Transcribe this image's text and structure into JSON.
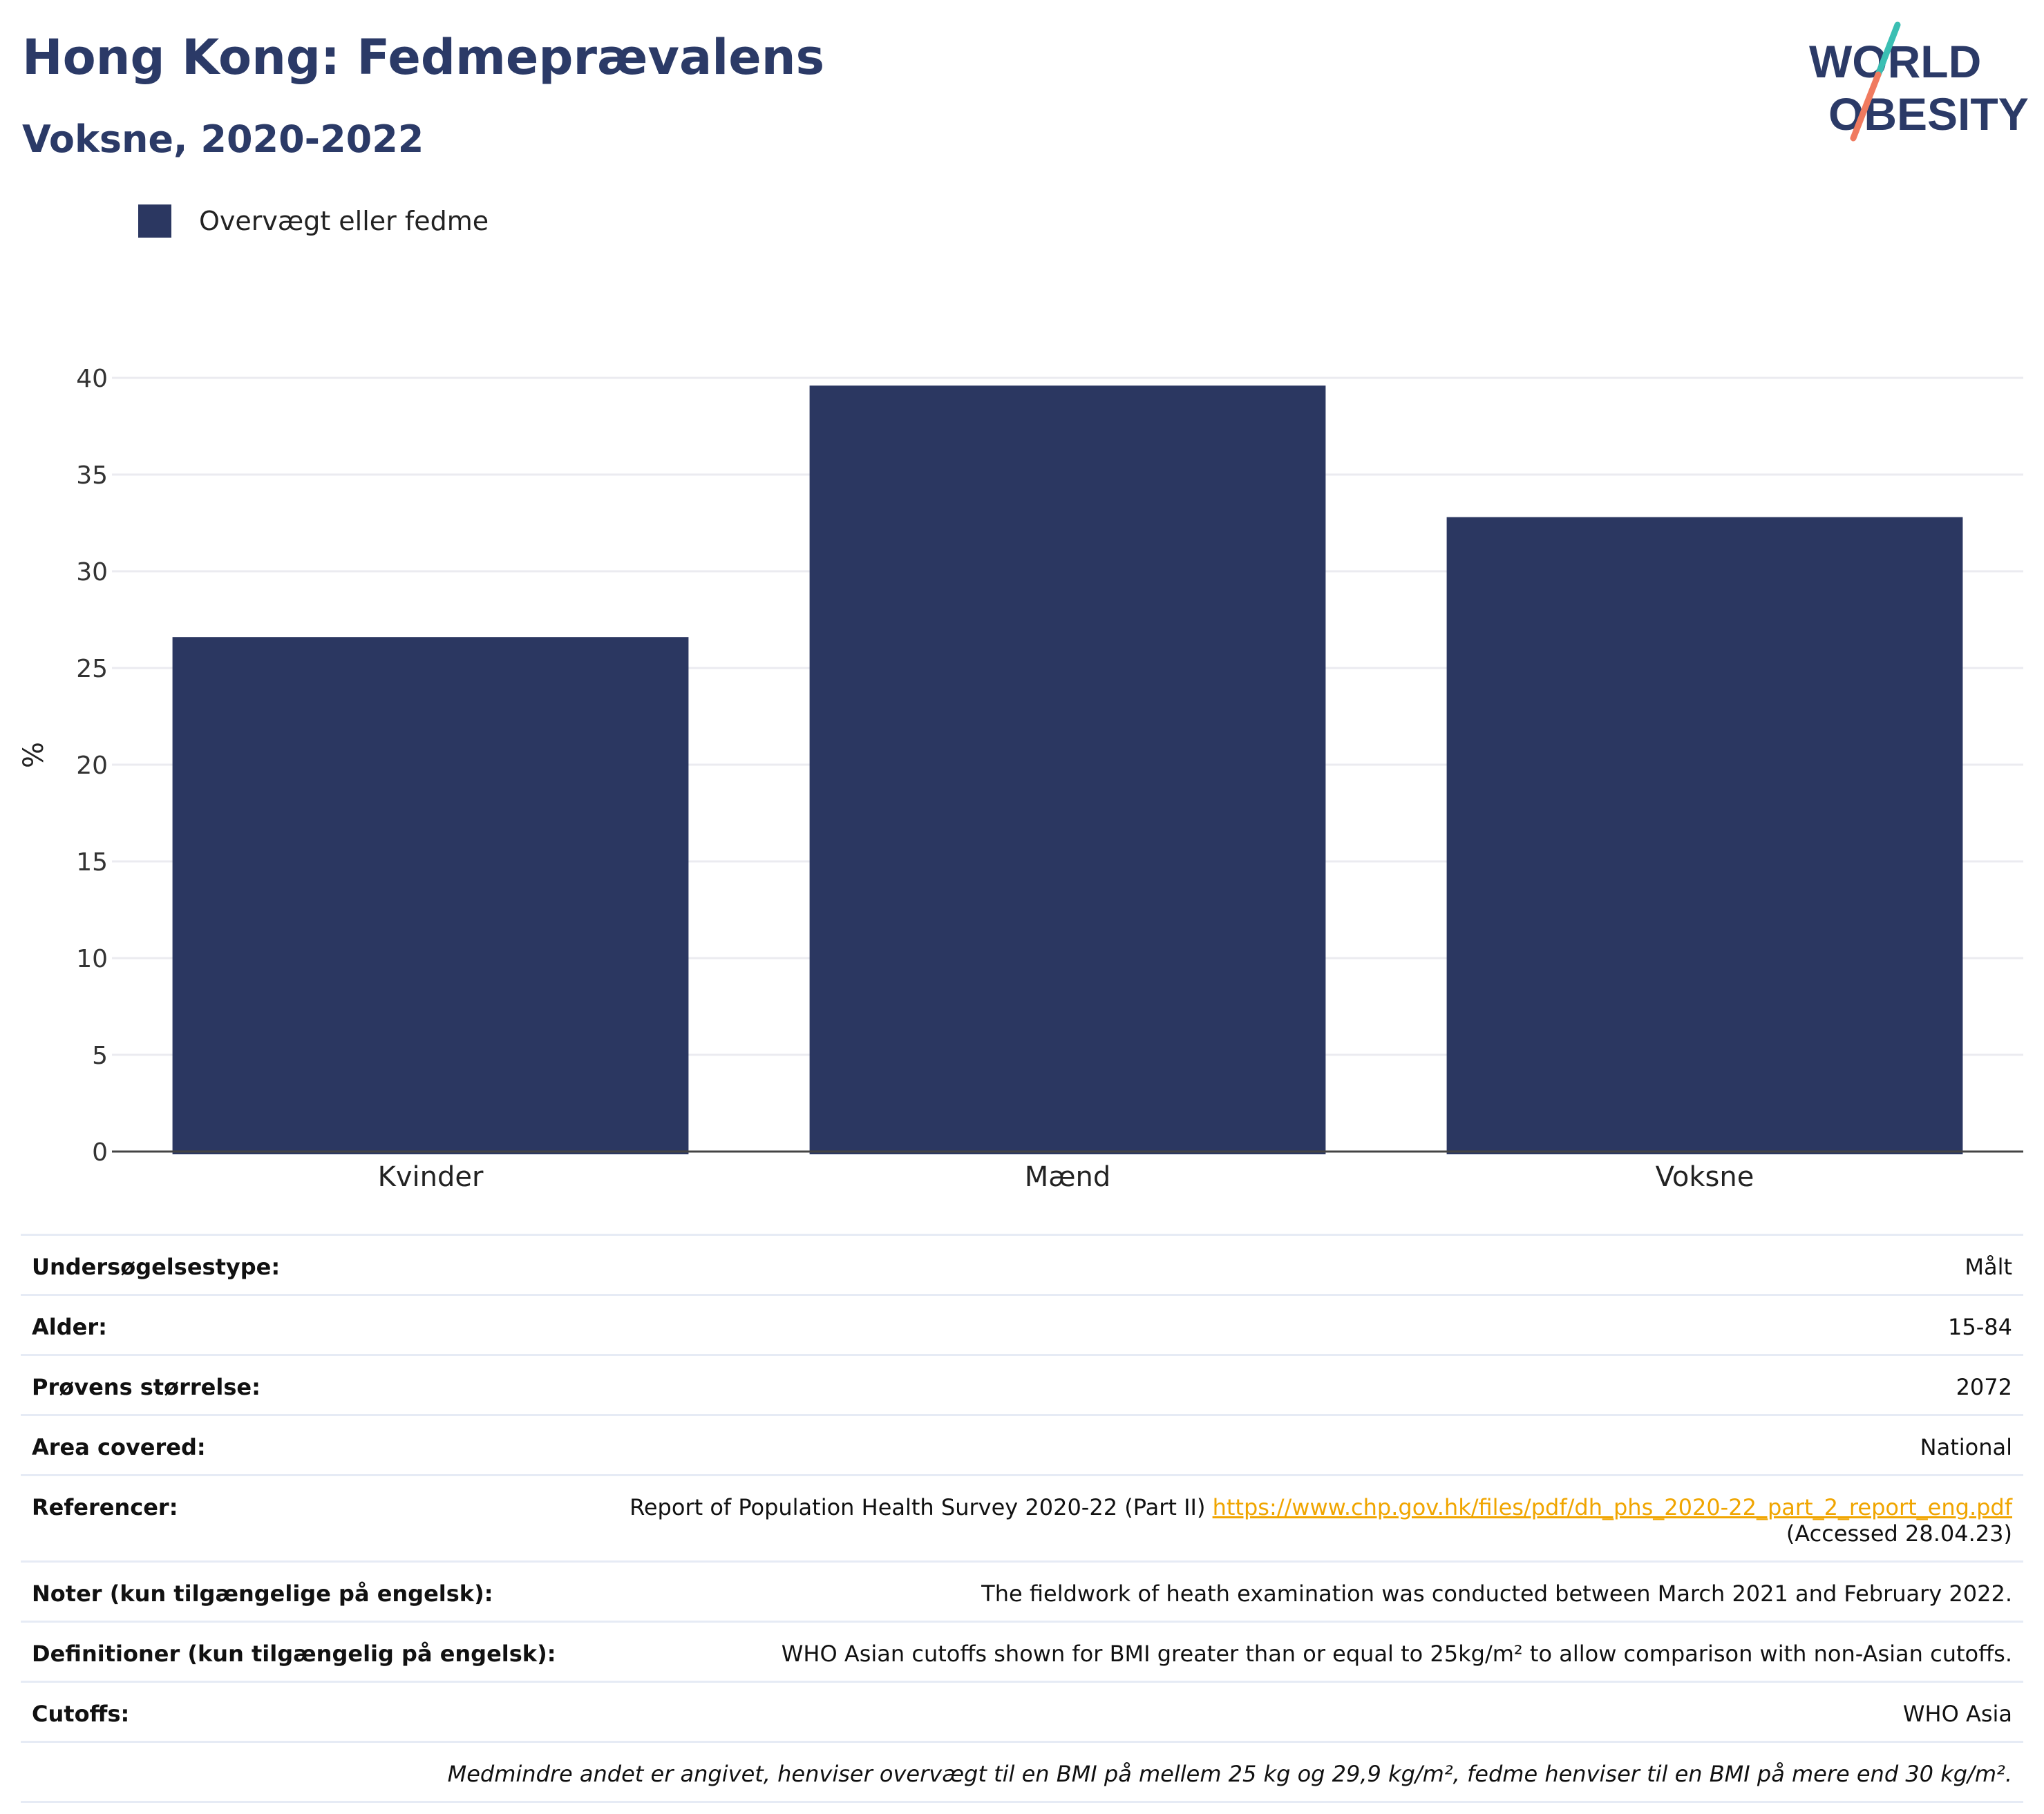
{
  "header": {
    "title": "Hong Kong: Fedmeprævalens",
    "subtitle": "Voksne, 2020-2022"
  },
  "logo": {
    "line1": "WORLD",
    "line2": "OBESITY",
    "colors": {
      "text": "#2b3a67",
      "slash_top": "#3bbfb3",
      "slash_bottom": "#f07a5f"
    }
  },
  "chart_data": {
    "type": "bar",
    "categories": [
      "Kvinder",
      "Mænd",
      "Voksne"
    ],
    "series": [
      {
        "name": "Overvægt eller fedme",
        "values": [
          26.6,
          39.6,
          32.8
        ],
        "color": "#2b3761"
      }
    ],
    "ylabel": "%",
    "ylim": [
      0,
      40
    ],
    "yticks": [
      0,
      5,
      10,
      15,
      20,
      25,
      30,
      35,
      40
    ],
    "grid": true,
    "legend": "top-left"
  },
  "meta": {
    "rows": [
      {
        "key": "Undersøgelsestype:",
        "value": "Målt"
      },
      {
        "key": "Alder:",
        "value": "15-84"
      },
      {
        "key": "Prøvens størrelse:",
        "value": "2072"
      },
      {
        "key": "Area covered:",
        "value": "National"
      }
    ],
    "references": {
      "key": "Referencer:",
      "text": "Report of Population Health Survey 2020-22 (Part II)",
      "link": "https://www.chp.gov.hk/files/pdf/dh_phs_2020-22_part_2_report_eng.pdf",
      "accessed": "(Accessed 28.04.23)"
    },
    "rows2": [
      {
        "key": "Noter (kun tilgængelige på engelsk):",
        "value": "The fieldwork of heath examination was conducted between March 2021 and February 2022."
      },
      {
        "key": "Definitioner (kun tilgængelig på engelsk):",
        "value": "WHO Asian cutoffs shown for BMI greater than or equal to 25kg/m² to allow comparison with non-Asian cutoffs."
      },
      {
        "key": "Cutoffs:",
        "value": "WHO Asia"
      }
    ],
    "footnote": "Medmindre andet er angivet, henviser overvægt til en BMI på mellem 25 kg og 29,9 kg/m², fedme henviser til en BMI på mere end 30 kg/m²."
  }
}
